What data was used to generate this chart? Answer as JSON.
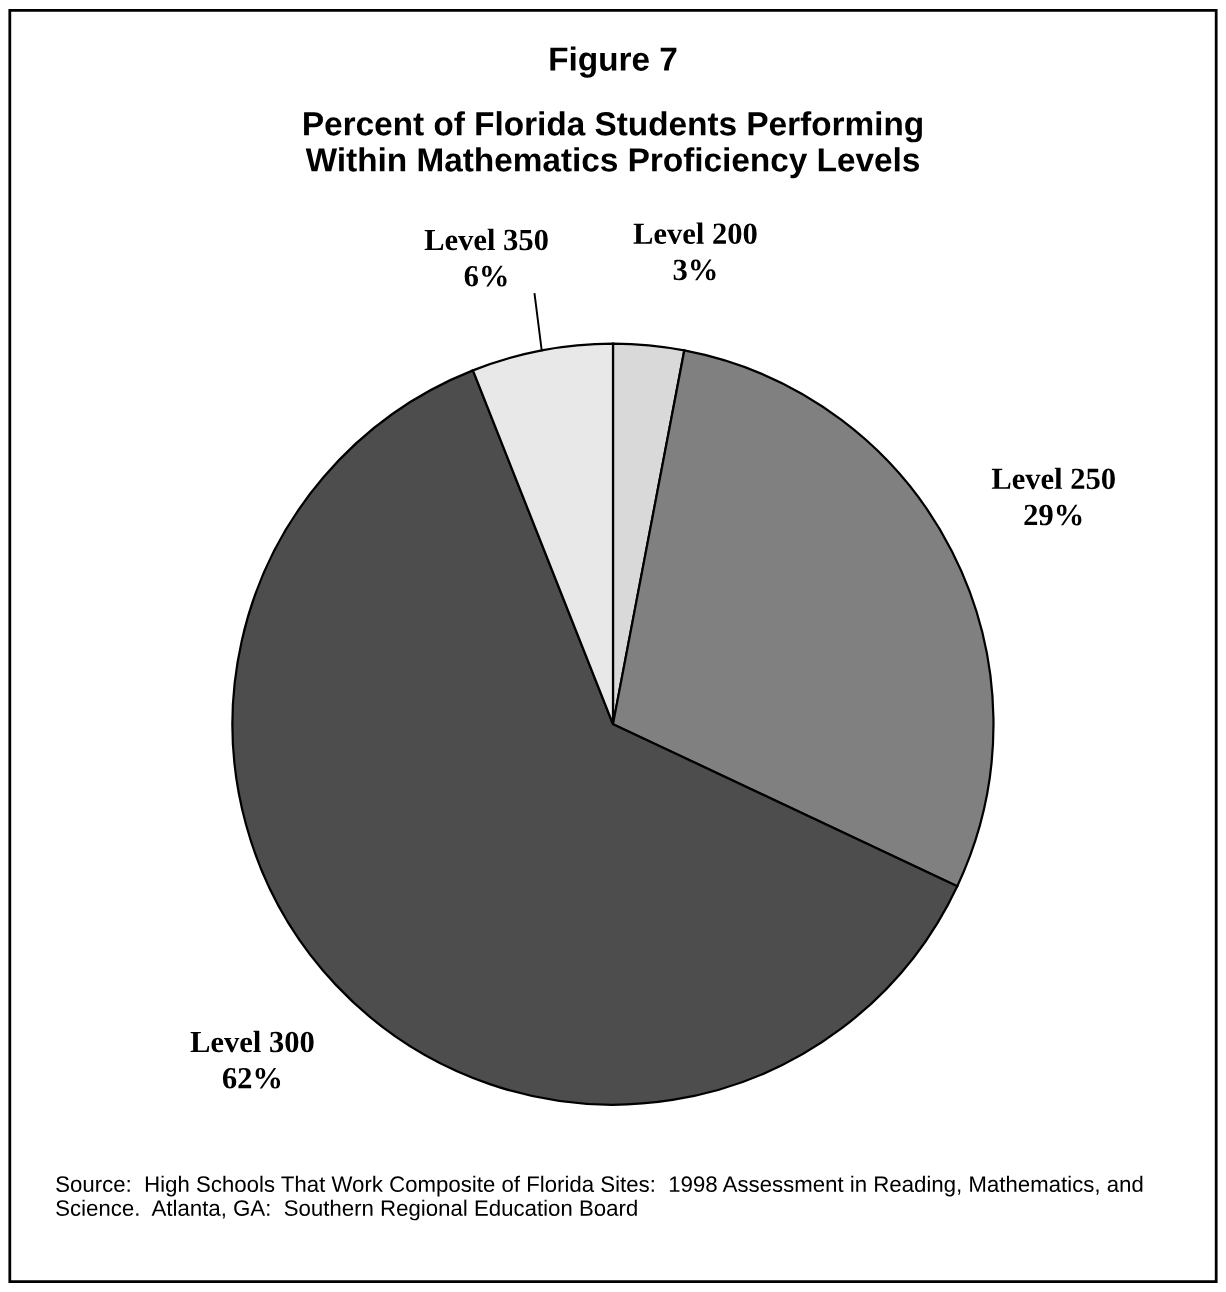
{
  "chart_data": {
    "type": "pie",
    "title": "Figure 7",
    "subtitle": "Percent of Florida Students Performing\nWithin Mathematics Proficiency Levels",
    "categories": [
      "Level 200",
      "Level 250",
      "Level 300",
      "Level 350"
    ],
    "values": [
      3,
      29,
      62,
      6
    ],
    "value_labels": [
      "3%",
      "29%",
      "62%",
      "6%"
    ],
    "colors": [
      "#d9d9d9",
      "#808080",
      "#4d4d4d",
      "#e8e8e8"
    ],
    "legend": false,
    "annotations": [
      "Source:  High Schools That Work Composite of Florida Sites:  1998 Assessment in Reading, Mathematics, and Science.  Atlanta, GA:  Southern Regional Education Board"
    ]
  }
}
